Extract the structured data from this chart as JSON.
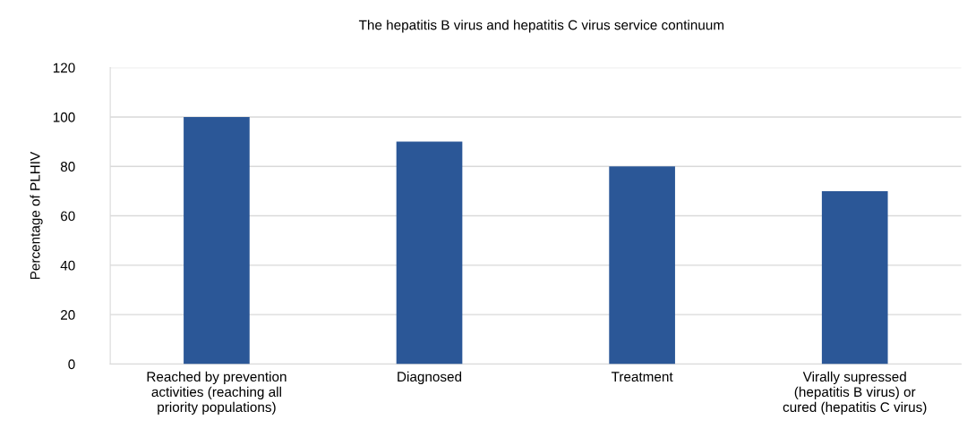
{
  "chart_data": {
    "type": "bar",
    "title": "The hepatitis B virus and hepatitis C virus service continuum",
    "ylabel": "Percentage of PLHIV",
    "categories": [
      "Reached by prevention\nactivities (reaching all\npriority populations)",
      "Diagnosed",
      "Treatment",
      "Virally supressed\n(hepatitis B virus) or\ncured (hepatitis C virus)"
    ],
    "values": [
      100,
      90,
      80,
      70
    ],
    "color": "#2b5797",
    "ylim": [
      0,
      120
    ],
    "yticks": [
      0,
      20,
      40,
      60,
      80,
      100,
      120
    ],
    "grid": "y",
    "legend": false
  }
}
